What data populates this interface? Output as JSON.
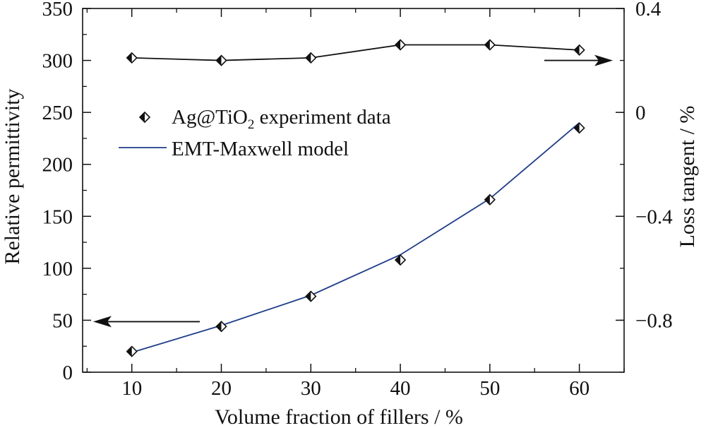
{
  "chart_data": {
    "type": "line",
    "xlabel": "Volume fraction of fillers / %",
    "ylabel_left": "Relative permittivity",
    "ylabel_right": "Loss tangent / %",
    "x_ticks": [
      10,
      20,
      30,
      40,
      50,
      60
    ],
    "x_tick_labels": [
      "10",
      "20",
      "30",
      "40",
      "50",
      "60"
    ],
    "xlim": [
      4.5,
      65
    ],
    "ylim_left": [
      0,
      350
    ],
    "y_left_ticks": [
      0,
      50,
      100,
      150,
      200,
      250,
      300,
      350
    ],
    "y_left_tick_labels": [
      "0",
      "50",
      "100",
      "150",
      "200",
      "250",
      "300",
      "350"
    ],
    "ylim_right": [
      -1.0,
      0.4
    ],
    "y_right_ticks": [
      -0.8,
      -0.4,
      0,
      0.4
    ],
    "y_right_tick_labels": [
      "−0.8",
      "−0.4",
      "0",
      "0.4"
    ],
    "series": [
      {
        "name": "Ag@TiO₂ experiment data",
        "axis": "left",
        "marker": "diamond",
        "x": [
          10,
          20,
          30,
          40,
          50,
          60
        ],
        "values": [
          20,
          44,
          73,
          108,
          166,
          235
        ]
      },
      {
        "name": "EMT-Maxwell model",
        "axis": "left",
        "color": "#1f3c88",
        "x": [
          10,
          20,
          30,
          40,
          50,
          60
        ],
        "values": [
          19,
          45,
          74,
          113,
          167,
          240
        ]
      },
      {
        "axis": "right",
        "marker": "diamond",
        "x": [
          10,
          20,
          30,
          40,
          50,
          60
        ],
        "values": [
          0.21,
          0.2,
          0.21,
          0.26,
          0.26,
          0.24
        ]
      }
    ],
    "legend": {
      "placement": "upper-left",
      "items": [
        {
          "label_parts": [
            "Ag@TiO",
            "2",
            " experiment data"
          ],
          "marker": "diamond"
        },
        {
          "label_parts": [
            "EMT-Maxwell model"
          ],
          "marker": "line",
          "color": "#1f3c88"
        }
      ]
    },
    "annotations": [
      {
        "type": "arrow",
        "direction": "left",
        "points_to": "left-axis",
        "y_value": 50
      },
      {
        "type": "arrow",
        "direction": "right",
        "points_to": "right-axis",
        "y_value": 0.2
      }
    ]
  }
}
